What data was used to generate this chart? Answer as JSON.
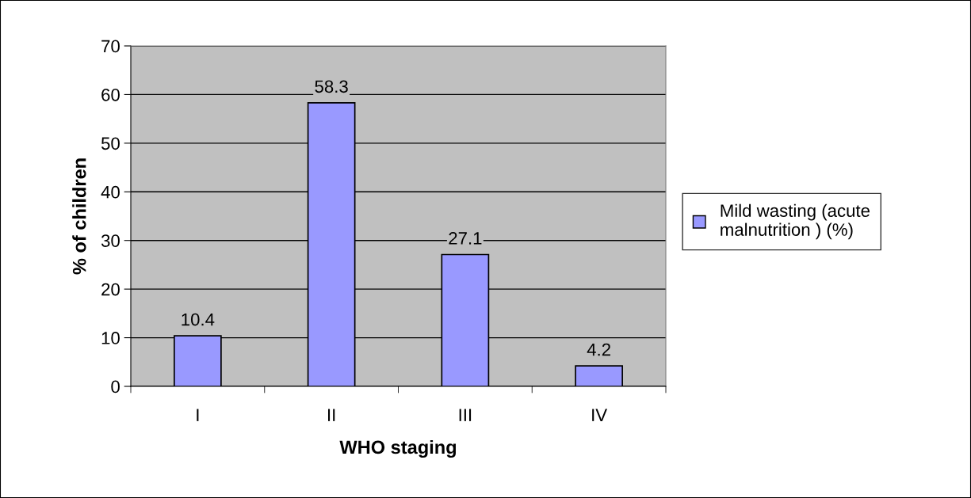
{
  "chart_data": {
    "type": "bar",
    "xlabel": "WHO staging",
    "ylabel": "% of children",
    "categories": [
      "I",
      "II",
      "III",
      "IV"
    ],
    "series": [
      {
        "name": "Mild wasting (acute\nmalnutrition ) (%)",
        "color": "#9999ff",
        "values": [
          10.4,
          58.3,
          27.1,
          4.2
        ]
      }
    ],
    "ylim": [
      0,
      70
    ],
    "yticks": [
      0,
      10,
      20,
      30,
      40,
      50,
      60,
      70
    ],
    "grid": "y",
    "legend": "right",
    "data_labels": true
  }
}
